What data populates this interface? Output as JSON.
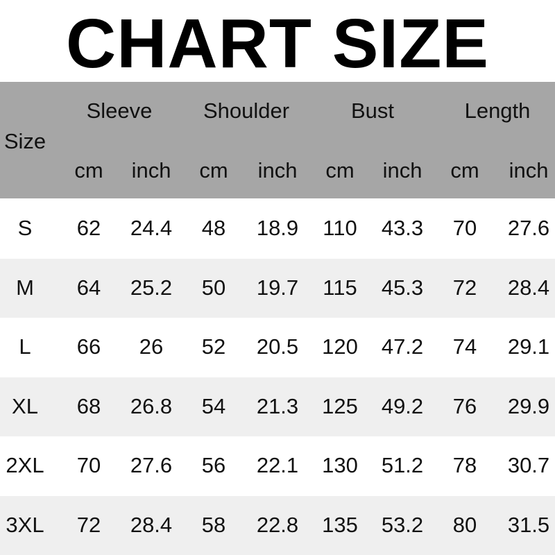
{
  "title": "CHART SIZE",
  "header": {
    "size_label": "Size",
    "groups": [
      "Sleeve",
      "Shoulder",
      "Bust",
      "Length"
    ],
    "units": [
      "cm",
      "inch",
      "cm",
      "inch",
      "cm",
      "inch",
      "cm",
      "inch"
    ]
  },
  "rows": [
    [
      "S",
      "62",
      "24.4",
      "48",
      "18.9",
      "110",
      "43.3",
      "70",
      "27.6"
    ],
    [
      "M",
      "64",
      "25.2",
      "50",
      "19.7",
      "115",
      "45.3",
      "72",
      "28.4"
    ],
    [
      "L",
      "66",
      "26",
      "52",
      "20.5",
      "120",
      "47.2",
      "74",
      "29.1"
    ],
    [
      "XL",
      "68",
      "26.8",
      "54",
      "21.3",
      "125",
      "49.2",
      "76",
      "29.9"
    ],
    [
      "2XL",
      "70",
      "27.6",
      "56",
      "22.1",
      "130",
      "51.2",
      "78",
      "30.7"
    ],
    [
      "3XL",
      "72",
      "28.4",
      "58",
      "22.8",
      "135",
      "53.2",
      "80",
      "31.5"
    ]
  ],
  "colors": {
    "header_bg": "#a6a6a6",
    "row_alt_bg": "#efefef",
    "row_bg": "#ffffff"
  }
}
